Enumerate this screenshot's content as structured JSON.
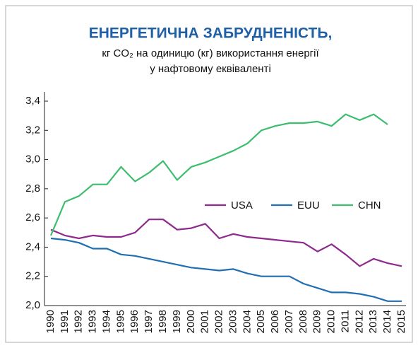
{
  "chart_data": {
    "type": "line",
    "title": "ЕНЕРГЕТИЧНА ЗАБРУДНЕНІСТЬ,",
    "subtitle": [
      "кг CO₂ на одиницю (кг) використання енергії",
      "у нафтовому еквіваленті"
    ],
    "categories": [
      "1990",
      "1991",
      "1992",
      "1993",
      "1994",
      "1995",
      "1996",
      "1997",
      "1998",
      "1999",
      "2000",
      "2001",
      "2002",
      "2003",
      "2004",
      "2005",
      "2006",
      "2007",
      "2008",
      "2009",
      "2010",
      "2011",
      "2012",
      "2013",
      "2014",
      "2015"
    ],
    "series": [
      {
        "name": "USA",
        "color": "#8e2a8e",
        "values": [
          2.52,
          2.48,
          2.46,
          2.48,
          2.47,
          2.47,
          2.5,
          2.59,
          2.59,
          2.52,
          2.53,
          2.56,
          2.46,
          2.49,
          2.47,
          2.46,
          2.45,
          2.44,
          2.43,
          2.37,
          2.42,
          2.35,
          2.27,
          2.32,
          2.29,
          2.27
        ]
      },
      {
        "name": "EUU",
        "color": "#1f6fb2",
        "values": [
          2.46,
          2.45,
          2.43,
          2.39,
          2.39,
          2.35,
          2.34,
          2.32,
          2.3,
          2.28,
          2.26,
          2.25,
          2.24,
          2.25,
          2.22,
          2.2,
          2.2,
          2.2,
          2.15,
          2.12,
          2.09,
          2.09,
          2.08,
          2.06,
          2.03,
          2.03
        ]
      },
      {
        "name": "CHN",
        "color": "#3dbd6e",
        "values": [
          2.48,
          2.71,
          2.75,
          2.83,
          2.83,
          2.95,
          2.85,
          2.91,
          2.99,
          2.86,
          2.95,
          2.98,
          3.02,
          3.06,
          3.11,
          3.2,
          3.23,
          3.25,
          3.25,
          3.26,
          3.23,
          3.31,
          3.27,
          3.31,
          3.24,
          null
        ]
      }
    ],
    "ylim": [
      2.0,
      3.4
    ],
    "yticks": [
      {
        "value": 2.0,
        "label": "2,0"
      },
      {
        "value": 2.2,
        "label": "2,2"
      },
      {
        "value": 2.4,
        "label": "2,4"
      },
      {
        "value": 2.6,
        "label": "2,6"
      },
      {
        "value": 2.8,
        "label": "2,8"
      },
      {
        "value": 3.0,
        "label": "3,0"
      },
      {
        "value": 3.2,
        "label": "3,2"
      },
      {
        "value": 3.4,
        "label": "3,4"
      }
    ]
  }
}
